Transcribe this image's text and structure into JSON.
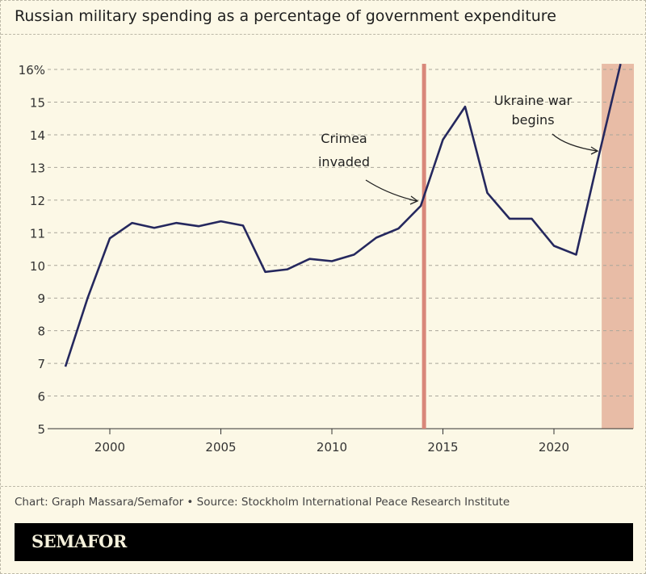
{
  "title": "Russian military spending as a percentage of government expenditure",
  "source": "Chart: Graph Massara/Semafor • Source: Stockholm International Peace Research Institute",
  "brand": "SEMAFOR",
  "colors": {
    "background": "#fcf8e6",
    "line": "#25285e",
    "event_line": "#d9877a",
    "war_band": "#e8bca6",
    "brand_bar": "#000000"
  },
  "chart_data": {
    "type": "line",
    "title": "Russian military spending as a percentage of government expenditure",
    "xlabel": "",
    "ylabel": "",
    "xlim": [
      1998,
      2023.6
    ],
    "ylim": [
      5,
      16
    ],
    "grid": "horizontal dashed",
    "x_ticks": [
      2000,
      2005,
      2010,
      2015,
      2020
    ],
    "y_ticks": [
      5,
      6,
      7,
      8,
      9,
      10,
      11,
      12,
      13,
      14,
      15,
      16
    ],
    "y_tick_labels": [
      "5",
      "6",
      "7",
      "8",
      "9",
      "10",
      "11",
      "12",
      "13",
      "14",
      "15",
      "16%"
    ],
    "x": [
      1998,
      1999,
      2000,
      2001,
      2002,
      2003,
      2004,
      2005,
      2006,
      2007,
      2008,
      2009,
      2010,
      2011,
      2012,
      2013,
      2014,
      2015,
      2016,
      2017,
      2018,
      2019,
      2020,
      2021,
      2022,
      2023
    ],
    "values": [
      6.9,
      9.0,
      10.83,
      11.3,
      11.15,
      11.3,
      11.2,
      11.35,
      11.22,
      9.8,
      9.88,
      10.2,
      10.13,
      10.33,
      10.85,
      11.13,
      11.82,
      13.85,
      14.86,
      12.22,
      11.43,
      11.43,
      10.6,
      10.33,
      13.3,
      16.17
    ],
    "annotations": [
      {
        "text_lines": [
          "Crimea",
          "invaded"
        ],
        "x": 2014.15,
        "mark": "vertical line"
      },
      {
        "text_lines": [
          "Ukraine war",
          "begins"
        ],
        "x_range": [
          2022.15,
          2023.6
        ],
        "mark": "shaded band"
      }
    ]
  }
}
